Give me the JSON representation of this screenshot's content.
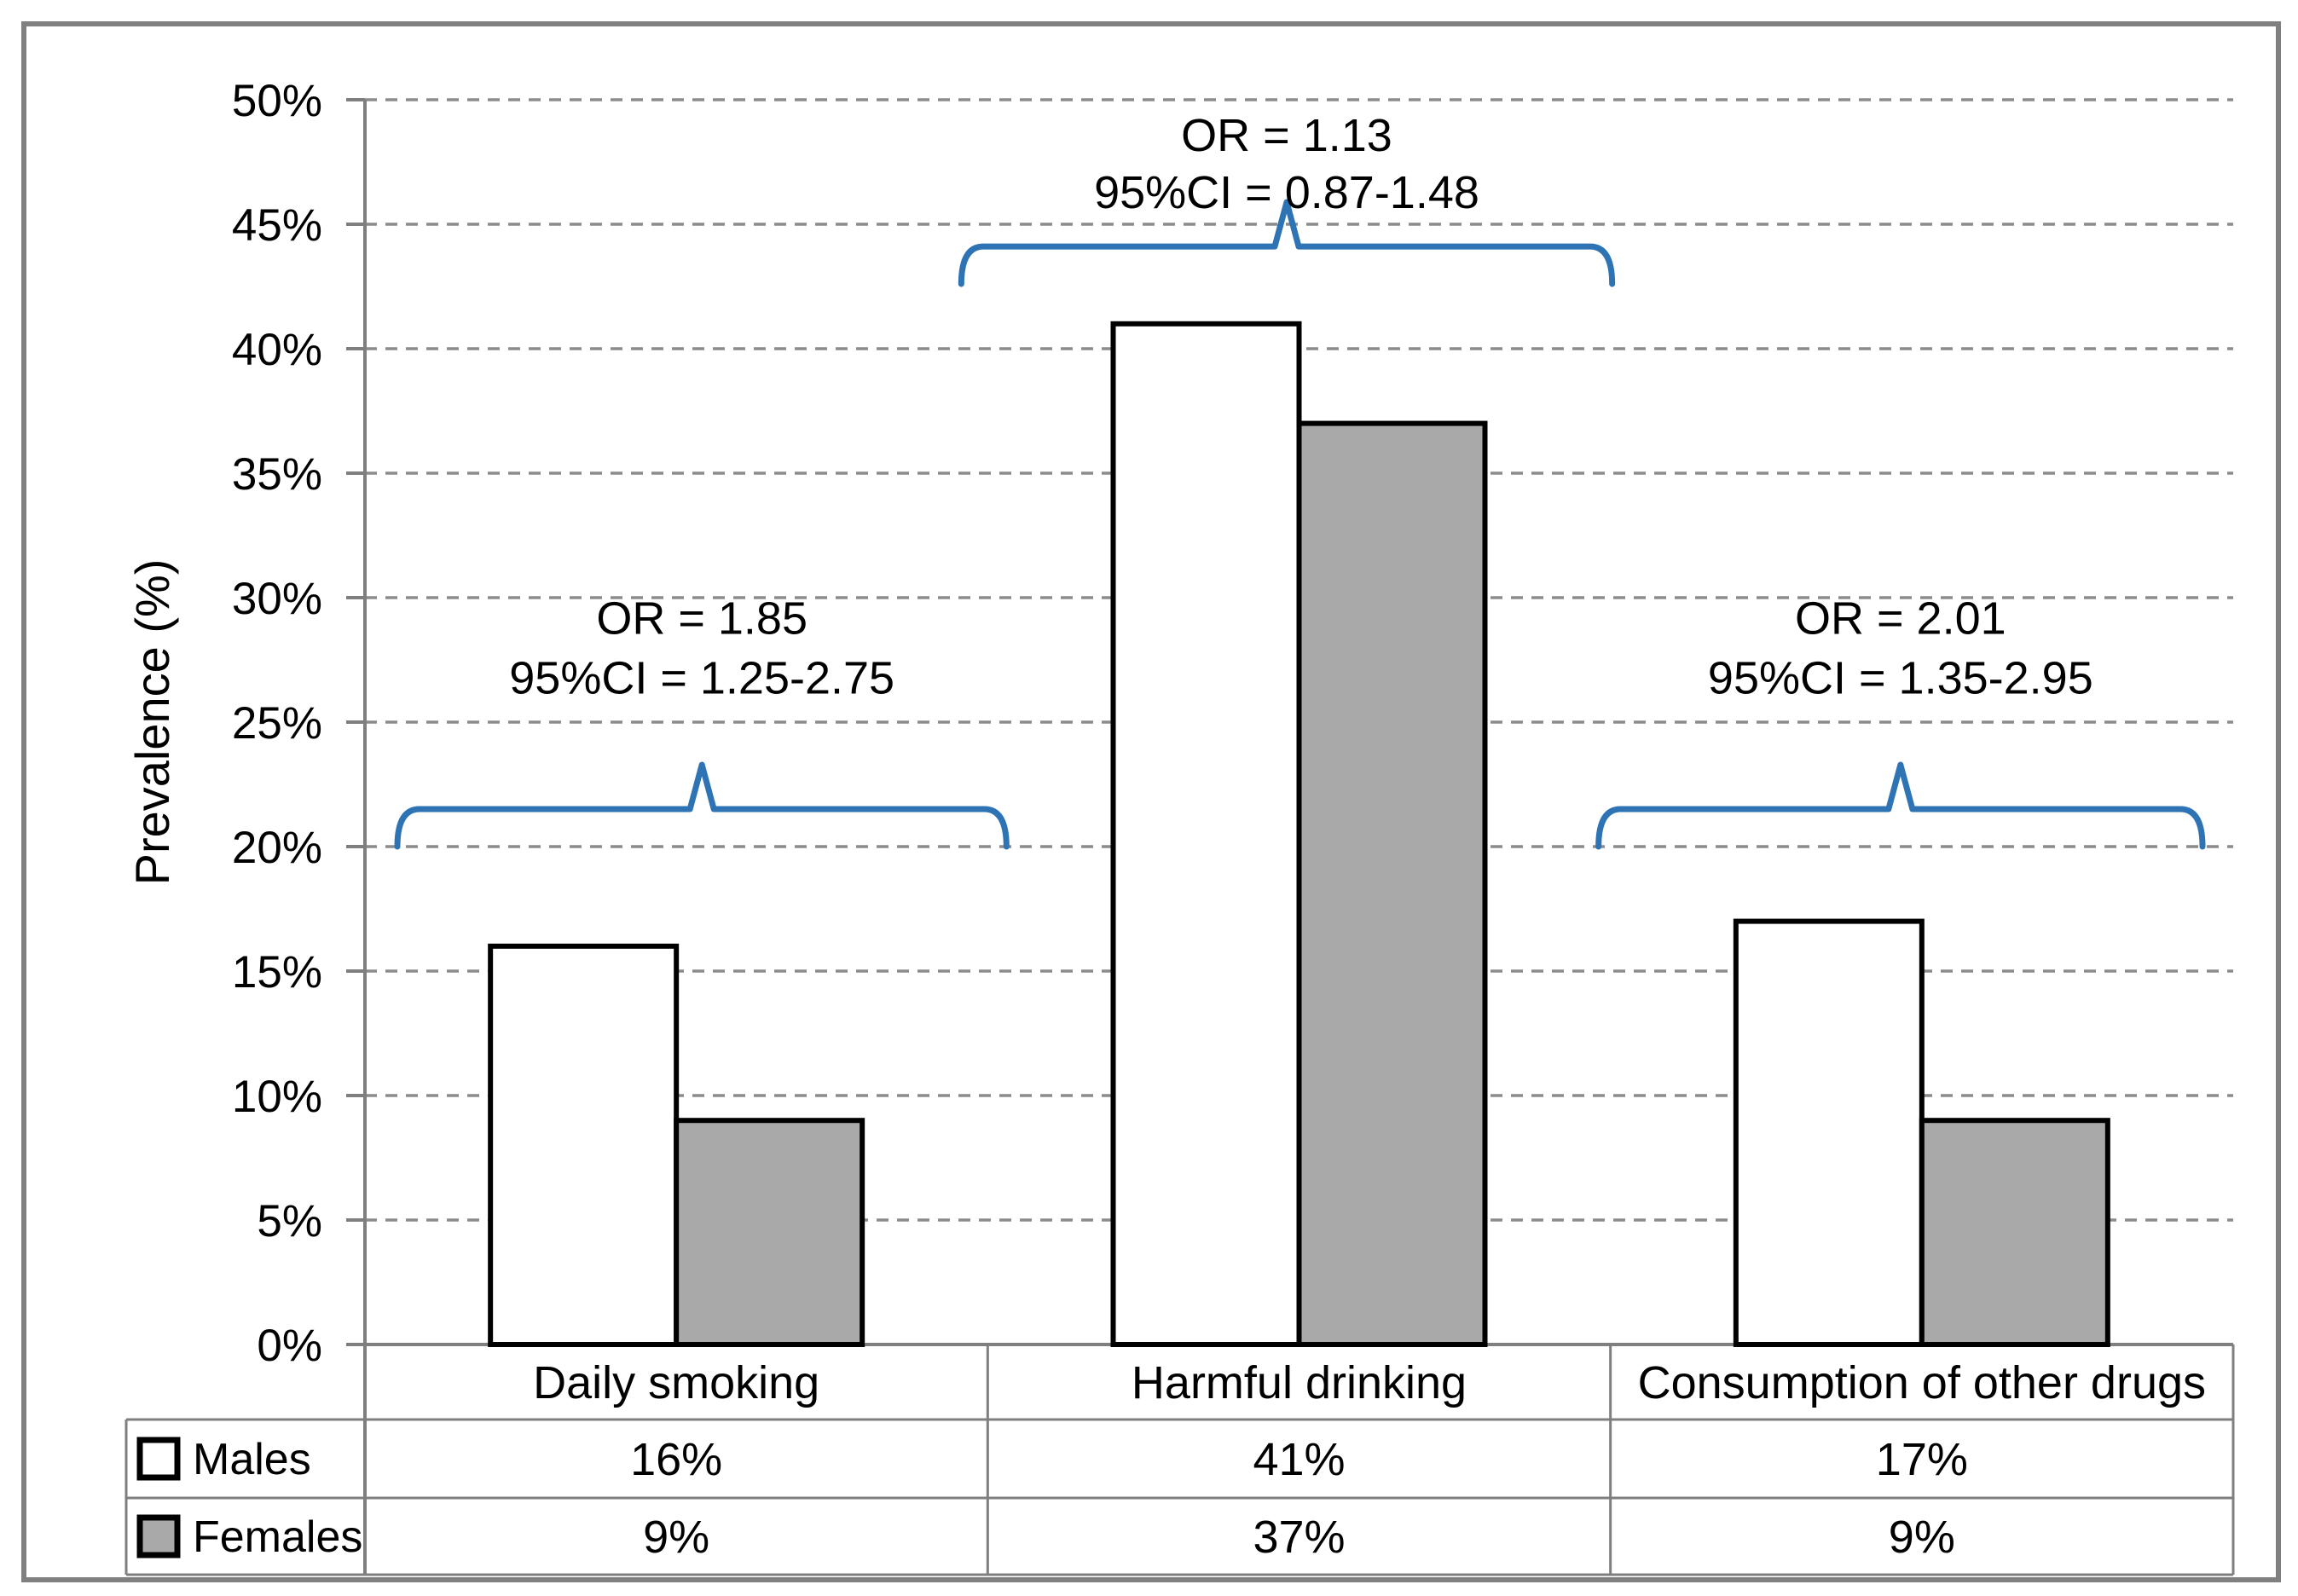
{
  "figure": {
    "background": "#FFFFFF",
    "frame_color": "#808080",
    "axis_color": "#7F7F7F",
    "grid_color": "#8C8C8C",
    "table_border_color": "#7F7F7F",
    "bar_border_color": "#000000",
    "brace_color": "#2E74B5",
    "text_color": "#000000"
  },
  "chart_data": {
    "type": "bar",
    "title": "",
    "xlabel": "",
    "ylabel": "Prevalence (%)",
    "ylim": [
      0,
      50
    ],
    "ytick_step": 5,
    "ytick_labels": [
      "0%",
      "5%",
      "10%",
      "15%",
      "20%",
      "25%",
      "30%",
      "35%",
      "40%",
      "45%",
      "50%"
    ],
    "grid": "horizontal-dashed",
    "legend_position": "table-left-column",
    "categories": [
      "Daily smoking",
      "Harmful drinking",
      "Consumption of other drugs"
    ],
    "series": [
      {
        "name": "Males",
        "fill": "#FFFFFF",
        "values": [
          16,
          41,
          17
        ],
        "labels": [
          "16%",
          "41%",
          "17%"
        ]
      },
      {
        "name": "Females",
        "fill": "#A9A9A9",
        "values": [
          9,
          37,
          9
        ],
        "labels": [
          "9%",
          "37%",
          "9%"
        ]
      }
    ],
    "annotations": [
      {
        "category": "Daily smoking",
        "lines": [
          "OR = 1.85",
          "95%CI = 1.25-2.75"
        ],
        "text_y_pct": [
          29.2,
          26.8
        ],
        "brace_base_pct": 20.0,
        "brace_x_offsets": [
          38,
          22
        ]
      },
      {
        "category": "Harmful drinking",
        "lines": [
          "OR = 1.13",
          "95%CI = 0.87-1.48"
        ],
        "text_y_pct": [
          48.6,
          46.3
        ],
        "brace_base_pct": 42.6,
        "brace_x_offsets": [
          -31,
          2
        ]
      },
      {
        "category": "Consumption of other drugs",
        "lines": [
          "OR = 2.01",
          "95%CI = 1.35-2.95"
        ],
        "text_y_pct": [
          29.2,
          26.8
        ],
        "brace_base_pct": 20.0,
        "brace_x_offsets": [
          -14,
          -36
        ]
      }
    ]
  }
}
